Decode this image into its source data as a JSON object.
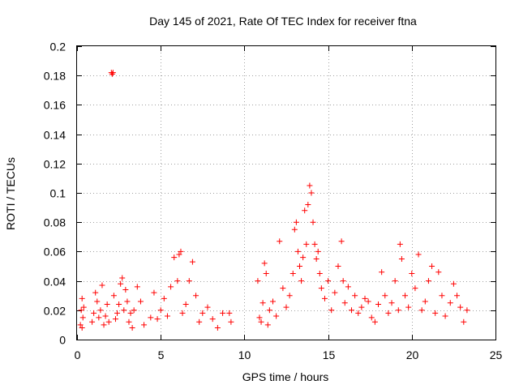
{
  "chart_data": {
    "type": "scatter",
    "title": "Day 145 of 2021, Rate Of TEC Index for receiver ftna",
    "xlabel": "GPS time / hours",
    "ylabel": "ROTI / TECUs",
    "xlim": [
      0,
      25
    ],
    "ylim": [
      0,
      0.2
    ],
    "xticks": [
      0,
      5,
      10,
      15,
      20,
      25
    ],
    "xtick_labels": [
      "0",
      "5",
      "10",
      "15",
      "20",
      "25"
    ],
    "yticks": [
      0,
      0.02,
      0.04,
      0.06,
      0.08,
      0.1,
      0.12,
      0.14,
      0.16,
      0.18,
      0.2
    ],
    "ytick_labels": [
      "0",
      "0.02",
      "0.04",
      "0.06",
      "0.08",
      "0.1",
      "0.12",
      "0.14",
      "0.16",
      "0.18",
      "0.2"
    ],
    "grid": true,
    "legend": "none",
    "marker": "+",
    "color": "#ff0000",
    "series": [
      {
        "x": [
          0.2,
          0.25,
          0.3,
          0.3,
          0.35,
          0.4,
          0.9,
          1.0,
          1.1,
          1.2,
          1.3,
          1.4,
          1.5,
          1.6,
          1.7,
          1.8,
          1.9,
          2.05,
          2.1,
          2.15,
          2.2,
          2.3,
          2.4,
          2.5,
          2.6,
          2.7,
          2.8,
          2.9,
          3.0,
          3.1,
          3.2,
          3.3,
          3.4,
          3.6,
          3.8,
          4.0,
          4.4,
          4.6,
          4.8,
          5.0,
          5.2,
          5.4,
          5.6,
          5.8,
          6.0,
          6.1,
          6.2,
          6.3,
          6.5,
          6.7,
          6.9,
          7.1,
          7.3,
          7.5,
          7.8,
          8.1,
          8.4,
          8.7,
          9.1,
          9.2,
          10.8,
          10.9,
          11.0,
          11.1,
          11.2,
          11.3,
          11.4,
          11.5,
          11.7,
          11.9,
          12.1,
          12.3,
          12.5,
          12.7,
          12.9,
          13.0,
          13.1,
          13.2,
          13.3,
          13.4,
          13.5,
          13.6,
          13.7,
          13.8,
          13.9,
          14.0,
          14.1,
          14.2,
          14.3,
          14.4,
          14.5,
          14.6,
          14.8,
          15.0,
          15.2,
          15.4,
          15.6,
          15.8,
          15.9,
          16.0,
          16.2,
          16.4,
          16.6,
          16.8,
          17.0,
          17.2,
          17.4,
          17.6,
          17.8,
          18.0,
          18.2,
          18.4,
          18.6,
          18.8,
          19.0,
          19.2,
          19.3,
          19.4,
          19.6,
          19.8,
          20.0,
          20.2,
          20.4,
          20.6,
          20.8,
          21.0,
          21.2,
          21.4,
          21.6,
          21.8,
          22.0,
          22.3,
          22.5,
          22.7,
          22.9,
          23.1,
          23.3
        ],
        "y": [
          0.01,
          0.02,
          0.028,
          0.008,
          0.015,
          0.022,
          0.012,
          0.018,
          0.032,
          0.026,
          0.015,
          0.02,
          0.037,
          0.01,
          0.016,
          0.024,
          0.012,
          0.182,
          0.181,
          0.182,
          0.03,
          0.014,
          0.018,
          0.024,
          0.038,
          0.042,
          0.02,
          0.034,
          0.026,
          0.012,
          0.018,
          0.008,
          0.02,
          0.036,
          0.026,
          0.01,
          0.015,
          0.032,
          0.014,
          0.02,
          0.028,
          0.016,
          0.036,
          0.056,
          0.04,
          0.058,
          0.06,
          0.018,
          0.024,
          0.04,
          0.053,
          0.03,
          0.012,
          0.018,
          0.022,
          0.014,
          0.008,
          0.018,
          0.018,
          0.012,
          0.04,
          0.015,
          0.012,
          0.025,
          0.052,
          0.045,
          0.01,
          0.02,
          0.026,
          0.016,
          0.067,
          0.035,
          0.022,
          0.03,
          0.045,
          0.075,
          0.08,
          0.06,
          0.05,
          0.04,
          0.056,
          0.088,
          0.065,
          0.092,
          0.105,
          0.1,
          0.08,
          0.065,
          0.055,
          0.06,
          0.045,
          0.035,
          0.028,
          0.04,
          0.02,
          0.032,
          0.05,
          0.067,
          0.04,
          0.025,
          0.036,
          0.02,
          0.03,
          0.018,
          0.022,
          0.028,
          0.026,
          0.015,
          0.012,
          0.024,
          0.046,
          0.03,
          0.018,
          0.025,
          0.04,
          0.02,
          0.065,
          0.055,
          0.03,
          0.022,
          0.045,
          0.035,
          0.058,
          0.02,
          0.026,
          0.04,
          0.05,
          0.018,
          0.046,
          0.03,
          0.016,
          0.025,
          0.038,
          0.03,
          0.022,
          0.012,
          0.02
        ]
      }
    ]
  }
}
